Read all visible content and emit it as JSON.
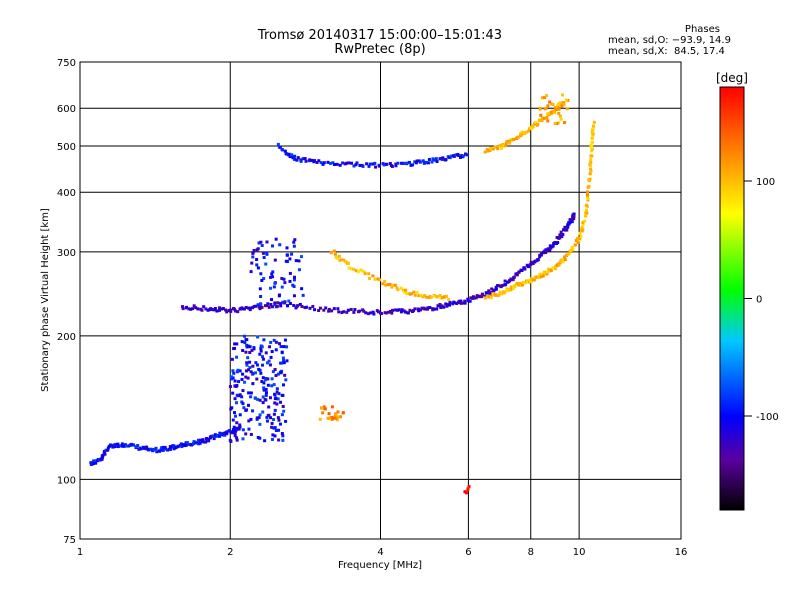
{
  "chart_data": {
    "type": "scatter",
    "title": "Tromsø 20140317 15:00:00–15:01:43",
    "subtitle": "RwPretec (8p)",
    "xlabel": "Frequency [MHz]",
    "ylabel": "Stationary phase Virtual Height [km]",
    "x_scale": "log",
    "y_scale": "log",
    "xlim": [
      1,
      16
    ],
    "ylim": [
      75,
      750
    ],
    "x_ticks": [
      1,
      2,
      4,
      6,
      8,
      10,
      16
    ],
    "y_ticks": [
      75,
      100,
      200,
      300,
      400,
      500,
      600,
      750
    ],
    "grid": true,
    "colorbar": {
      "label": "[deg]",
      "range": [
        -180,
        180
      ],
      "ticks": [
        100,
        0,
        -100
      ]
    },
    "phase_stats": {
      "heading": "Phases",
      "line_o": "mean, sd,O: −93.9, 14.9",
      "line_x": "mean, sd,X:  84.5, 17.4"
    },
    "traces": [
      {
        "kind": "curve",
        "phase": -100,
        "points": [
          [
            1.05,
            108
          ],
          [
            1.1,
            110
          ],
          [
            1.15,
            118
          ],
          [
            1.2,
            118
          ],
          [
            1.3,
            117
          ],
          [
            1.4,
            115
          ],
          [
            1.5,
            116
          ],
          [
            1.6,
            118
          ],
          [
            1.7,
            119
          ],
          [
            1.8,
            121
          ],
          [
            1.9,
            124
          ],
          [
            2.0,
            126
          ],
          [
            2.1,
            128
          ]
        ]
      },
      {
        "kind": "cloud",
        "phase": -100,
        "x": [
          2.0,
          2.6
        ],
        "y": [
          120,
          200
        ],
        "n": 220
      },
      {
        "kind": "cloud",
        "phase": -100,
        "x": [
          2.2,
          2.8
        ],
        "y": [
          230,
          320
        ],
        "n": 80
      },
      {
        "kind": "curve",
        "phase": -120,
        "points": [
          [
            1.6,
            230
          ],
          [
            1.8,
            228
          ],
          [
            2.0,
            226
          ],
          [
            2.2,
            228
          ],
          [
            2.5,
            233
          ],
          [
            3.0,
            228
          ],
          [
            3.5,
            225
          ],
          [
            4.0,
            224
          ],
          [
            4.5,
            225
          ],
          [
            5.0,
            228
          ],
          [
            5.5,
            233
          ],
          [
            6.0,
            237
          ],
          [
            6.5,
            245
          ],
          [
            7.0,
            255
          ],
          [
            7.5,
            268
          ],
          [
            8.0,
            283
          ],
          [
            8.5,
            298
          ],
          [
            9.0,
            315
          ],
          [
            9.5,
            340
          ],
          [
            9.8,
            360
          ]
        ]
      },
      {
        "kind": "curve",
        "phase": 100,
        "points": [
          [
            3.2,
            300
          ],
          [
            3.5,
            278
          ],
          [
            4.0,
            260
          ],
          [
            4.5,
            248
          ],
          [
            5.0,
            242
          ],
          [
            5.5,
            240
          ]
        ]
      },
      {
        "kind": "curve",
        "phase": 100,
        "points": [
          [
            6.5,
            240
          ],
          [
            7.0,
            247
          ],
          [
            7.5,
            255
          ],
          [
            8.0,
            262
          ],
          [
            8.5,
            270
          ],
          [
            9.0,
            280
          ],
          [
            9.5,
            295
          ],
          [
            10.0,
            320
          ],
          [
            10.3,
            360
          ],
          [
            10.5,
            430
          ],
          [
            10.6,
            500
          ],
          [
            10.7,
            560
          ]
        ]
      },
      {
        "kind": "curve",
        "phase": -100,
        "points": [
          [
            2.5,
            500
          ],
          [
            2.7,
            470
          ],
          [
            3.0,
            462
          ],
          [
            3.5,
            458
          ],
          [
            4.0,
            455
          ],
          [
            4.5,
            458
          ],
          [
            5.0,
            465
          ],
          [
            5.5,
            472
          ],
          [
            6.0,
            480
          ]
        ]
      },
      {
        "kind": "curve",
        "phase": 100,
        "points": [
          [
            6.5,
            490
          ],
          [
            7.0,
            500
          ],
          [
            7.5,
            520
          ],
          [
            8.0,
            545
          ],
          [
            8.5,
            570
          ],
          [
            9.0,
            600
          ],
          [
            9.3,
            620
          ]
        ]
      },
      {
        "kind": "cloud",
        "phase": 120,
        "x": [
          3.0,
          3.4
        ],
        "y": [
          132,
          142
        ],
        "n": 25
      },
      {
        "kind": "cloud",
        "phase": 110,
        "x": [
          8.3,
          9.5
        ],
        "y": [
          555,
          640
        ],
        "n": 30
      },
      {
        "kind": "cloud",
        "phase": 175,
        "x": [
          5.9,
          6.1
        ],
        "y": [
          93,
          97
        ],
        "n": 5
      }
    ]
  }
}
